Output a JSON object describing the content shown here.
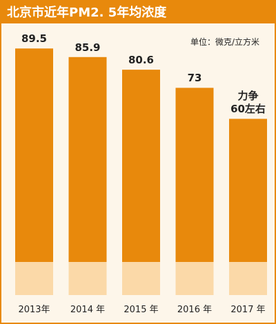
{
  "chart_data": {
    "type": "bar",
    "title": "北京市近年PM2. 5年均浓度",
    "unit": "单位：微克/立方米",
    "categories": [
      "2013年",
      "2014 年",
      "2015 年",
      "2016 年",
      "2017 年"
    ],
    "values": [
      89.5,
      85.9,
      80.6,
      73,
      60
    ],
    "value_labels": [
      "89.5",
      "85.9",
      "80.6",
      "73",
      "力争\n60左右"
    ],
    "color": "#e8890c",
    "ylim": [
      0,
      100
    ]
  }
}
